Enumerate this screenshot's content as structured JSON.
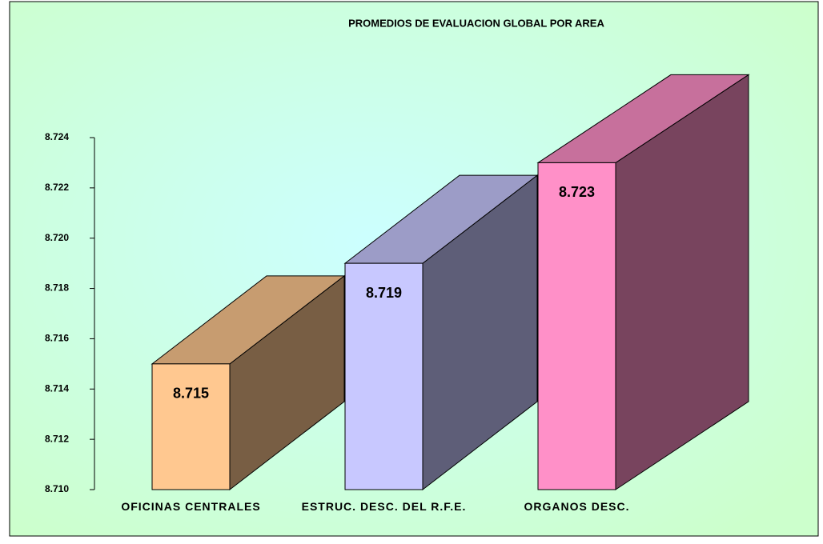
{
  "chart_data": {
    "type": "bar3d",
    "title": "PROMEDIOS DE EVALUACION GLOBAL POR AREA",
    "categories": [
      "OFICINAS CENTRALES",
      "ESTRUC. DESC. DEL R.F.E.",
      "ORGANOS DESC."
    ],
    "values": [
      8.715,
      8.719,
      8.723
    ],
    "colors": [
      "#ffc890",
      "#c8c8ff",
      "#ff90c8"
    ],
    "ylim": [
      8.71,
      8.724
    ],
    "yticks": [
      {
        "value": 8.71,
        "label": "8.710"
      },
      8.712,
      8.714,
      8.716,
      8.718,
      {
        "value": 8.72,
        "label": "8.720"
      },
      8.722,
      8.724
    ]
  }
}
